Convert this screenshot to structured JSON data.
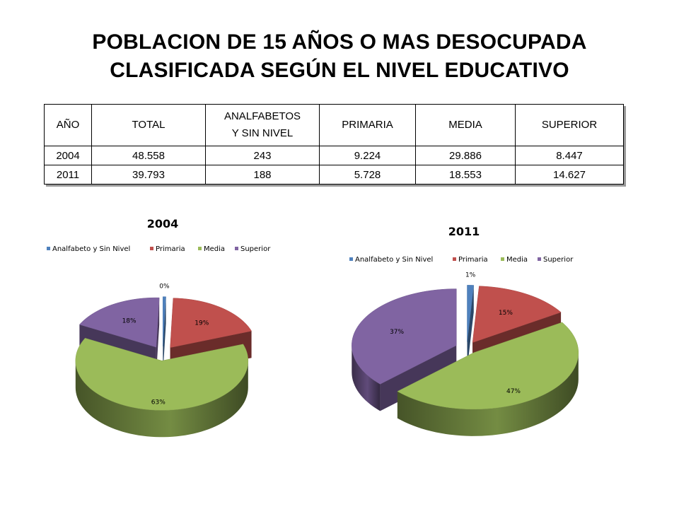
{
  "title_lines": [
    "POBLACION DE 15 AÑOS O MAS DESOCUPADA",
    "CLASIFICADA SEGÚN EL NIVEL EDUCATIVO"
  ],
  "table": {
    "headers": [
      "AÑO",
      "TOTAL",
      [
        "ANALFABETOS",
        "Y SIN NIVEL"
      ],
      "PRIMARIA",
      "MEDIA",
      "SUPERIOR"
    ],
    "rows": [
      [
        "2004",
        "48.558",
        "243",
        "9.224",
        "29.886",
        "8.447"
      ],
      [
        "2011",
        "39.793",
        "188",
        "5.728",
        "18.553",
        "14.627"
      ]
    ]
  },
  "colors": {
    "Analfabeto y Sin Nivel": "#4f81bd",
    "Primaria": "#c0504d",
    "Media": "#9bbb59",
    "Superior": "#8064a2"
  },
  "chart_data": [
    {
      "type": "pie",
      "title": "2004",
      "legend_position": "top",
      "categories": [
        "Analfabeto y Sin Nivel",
        "Primaria",
        "Media",
        "Superior"
      ],
      "values": [
        0,
        19,
        63,
        18
      ],
      "labels": [
        "0%",
        "19%",
        "63%",
        "18%"
      ],
      "exploded": true,
      "three_d": true
    },
    {
      "type": "pie",
      "title": "2011",
      "legend_position": "top",
      "categories": [
        "Analfabeto y Sin Nivel",
        "Primaria",
        "Media",
        "Superior"
      ],
      "values": [
        1,
        15,
        47,
        37
      ],
      "labels": [
        "1%",
        "15%",
        "47%",
        "37%"
      ],
      "exploded": true,
      "three_d": true
    }
  ]
}
